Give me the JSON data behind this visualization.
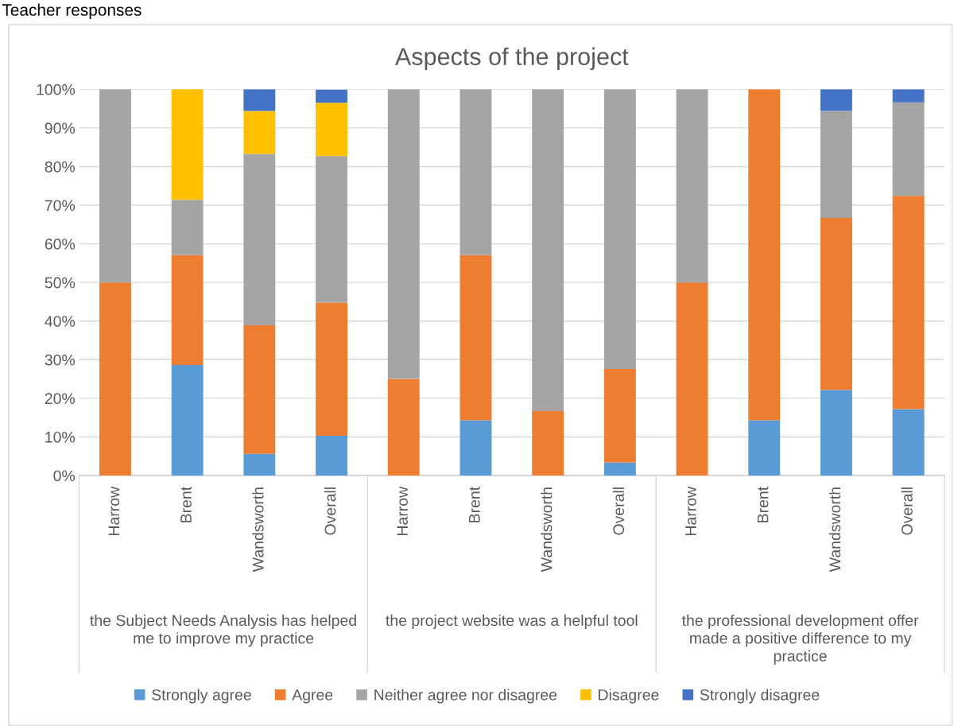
{
  "chart_data": {
    "type": "bar",
    "stacked": true,
    "title": "Aspects of the project",
    "categories": [
      "Harrow",
      "Brent",
      "Wandsworth",
      "Overall",
      "Harrow",
      "Brent",
      "Wandsworth",
      "Overall",
      "Harrow",
      "Brent",
      "Wandsworth",
      "Overall"
    ],
    "annotations": [
      "Teacher responses",
      "the Subject Needs Analysis has helped me to improve my practice",
      "the project website was a helpful tool",
      "the professional development offer made a positive difference to my practice"
    ],
    "series": [
      {
        "name": "Strongly agree",
        "color": "#5b9bd5",
        "values": [
          0,
          28.6,
          5.6,
          10.3,
          0,
          14.3,
          0,
          3.4,
          0,
          14.3,
          22.2,
          17.2
        ]
      },
      {
        "name": "Agree",
        "color": "#ed7d31",
        "values": [
          50,
          28.5,
          33.3,
          34.5,
          25,
          42.8,
          16.7,
          24.2,
          50,
          85.7,
          44.5,
          55.2
        ]
      },
      {
        "name": "Neither agree nor disagree",
        "color": "#a5a5a5",
        "values": [
          50,
          14.3,
          44.4,
          37.9,
          75,
          42.9,
          83.3,
          72.4,
          50,
          0,
          27.7,
          24.2
        ]
      },
      {
        "name": "Disagree",
        "color": "#ffc000",
        "values": [
          0,
          28.6,
          11.1,
          13.8,
          0,
          0,
          0,
          0,
          0,
          0,
          0,
          0
        ]
      },
      {
        "name": "Strongly disagree",
        "color": "#4472c4",
        "values": [
          0,
          0,
          5.6,
          3.4,
          0,
          0,
          0,
          0,
          0,
          0,
          5.6,
          3.4
        ]
      }
    ],
    "ylim": [
      0,
      100
    ],
    "yticks": [
      {
        "value": 0,
        "label": "0%"
      },
      {
        "value": 10,
        "label": "10%"
      },
      {
        "value": 20,
        "label": "20%"
      },
      {
        "value": 30,
        "label": "30%"
      },
      {
        "value": 40,
        "label": "40%"
      },
      {
        "value": 50,
        "label": "50%"
      },
      {
        "value": 60,
        "label": "60%"
      },
      {
        "value": 70,
        "label": "70%"
      },
      {
        "value": 80,
        "label": "80%"
      },
      {
        "value": 90,
        "label": "90%"
      },
      {
        "value": 100,
        "label": "100%"
      }
    ],
    "grid": "y",
    "legend": "bottom"
  }
}
